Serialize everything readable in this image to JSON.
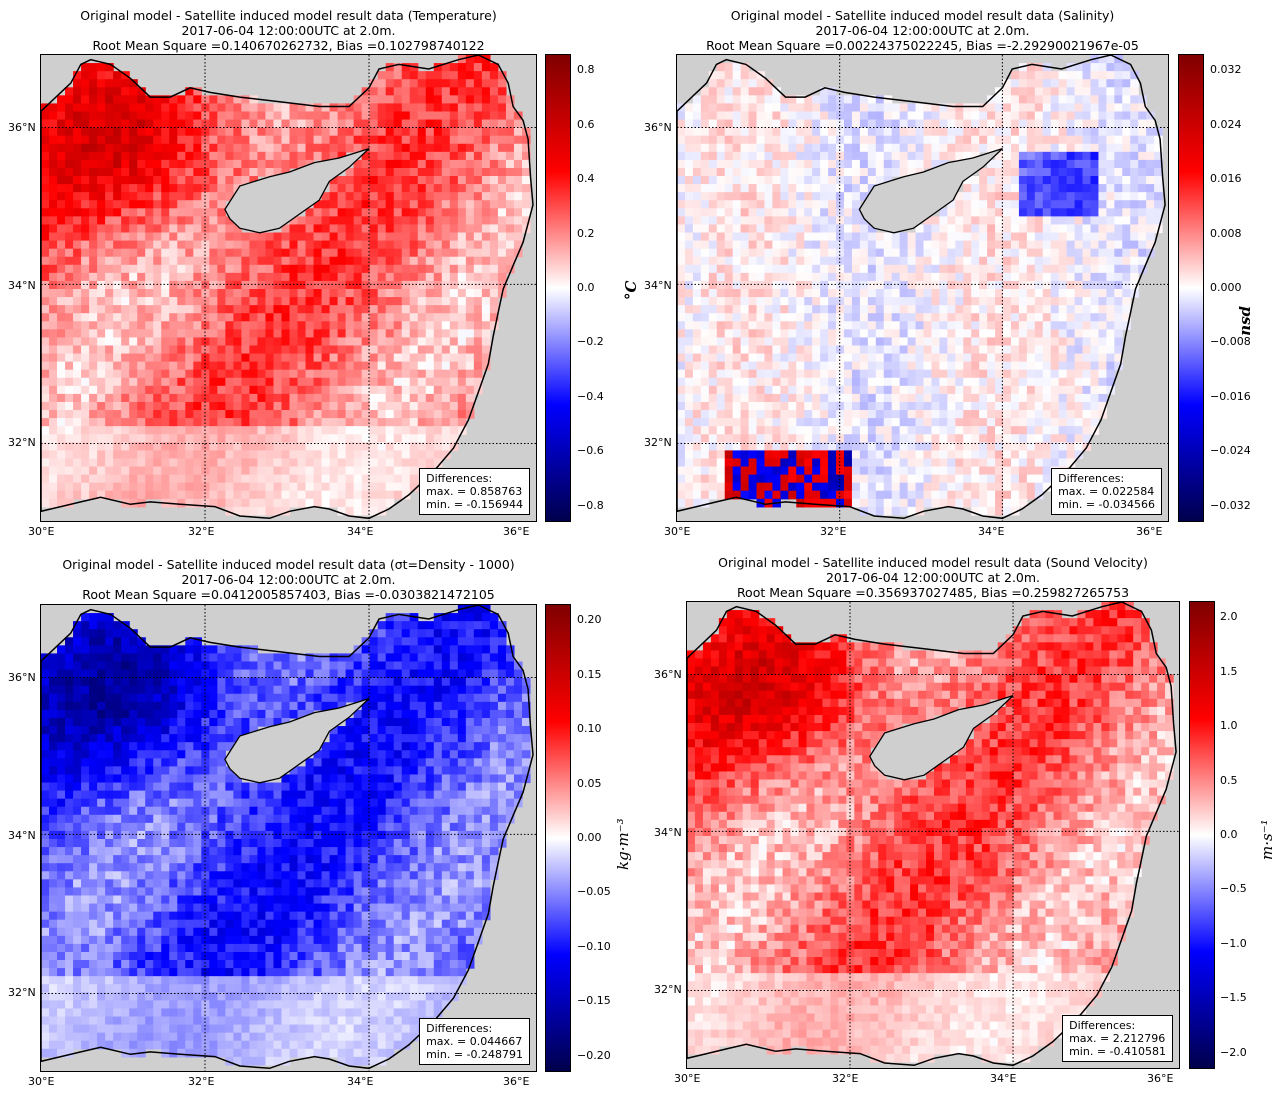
{
  "colors": {
    "land": "#cfcfcf",
    "cmap": [
      "#00004c",
      "#0000ff",
      "#ffffff",
      "#ff0000",
      "#800000"
    ]
  },
  "chart_data": [
    {
      "type": "heatmap",
      "title": [
        "Original model - Satellite induced model result data (Temperature)",
        "2017-06-04 12:00:00UTC at 2.0m.",
        "Root Mean Square =0.140670262732, Bias =0.102798740122"
      ],
      "variable": "Temperature",
      "colorbar_label": "°C",
      "xticks": [
        "30°E",
        "32°E",
        "34°E",
        "36°E"
      ],
      "yticks": [
        "36°N",
        "34°N",
        "32°N"
      ],
      "colorbar_ticks": [
        "0.8",
        "0.6",
        "0.4",
        "0.2",
        "0.0",
        "−0.2",
        "−0.4",
        "−0.6",
        "−0.8"
      ],
      "clim": [
        -0.86,
        0.86
      ],
      "rms": 0.140670262732,
      "bias": 0.102798740122,
      "differences": {
        "header": "Differences:",
        "max_label": "max. = 0.858763",
        "min_label": "min. = -0.156944",
        "max": 0.858763,
        "min": -0.156944
      },
      "pattern": "warm"
    },
    {
      "type": "heatmap",
      "title": [
        "Original model - Satellite induced model result data (Salinity)",
        "2017-06-04 12:00:00UTC at 2.0m.",
        "Root Mean Square =0.00224375022245, Bias =-2.29290021967e-05"
      ],
      "variable": "Salinity",
      "colorbar_label": "psu",
      "xticks": [
        "30°E",
        "32°E",
        "34°E",
        "36°E"
      ],
      "yticks": [
        "36°N",
        "34°N",
        "32°N"
      ],
      "colorbar_ticks": [
        "0.032",
        "0.024",
        "0.016",
        "0.008",
        "0.000",
        "−0.008",
        "−0.016",
        "−0.024",
        "−0.032"
      ],
      "clim": [
        -0.0345,
        0.0345
      ],
      "rms": 0.00224375022245,
      "bias": -2.29290021967e-05,
      "differences": {
        "header": "Differences:",
        "max_label": "max. = 0.022584",
        "min_label": "min. = -0.034566",
        "max": 0.022584,
        "min": -0.034566
      },
      "pattern": "neutral"
    },
    {
      "type": "heatmap",
      "title": [
        "Original model - Satellite induced model result data (σt=Density - 1000)",
        "2017-06-04 12:00:00UTC at 2.0m.",
        "Root Mean Square =0.0412005857403, Bias =-0.0303821472105"
      ],
      "variable": "Density",
      "colorbar_label": "kg·m⁻³",
      "xticks": [
        "30°E",
        "32°E",
        "34°E",
        "36°E"
      ],
      "yticks": [
        "36°N",
        "34°N",
        "32°N"
      ],
      "colorbar_ticks": [
        "0.20",
        "0.15",
        "0.10",
        "0.05",
        "0.00",
        "−0.05",
        "−0.10",
        "−0.15",
        "−0.20"
      ],
      "clim": [
        -0.25,
        0.25
      ],
      "rms": 0.0412005857403,
      "bias": -0.0303821472105,
      "differences": {
        "header": "Differences:",
        "max_label": "max. = 0.044667",
        "min_label": "min. = -0.248791",
        "max": 0.044667,
        "min": -0.248791
      },
      "pattern": "cold"
    },
    {
      "type": "heatmap",
      "title": [
        "Original model - Satellite induced model result data (Sound Velocity)",
        "2017-06-04 12:00:00UTC at 2.0m.",
        "Root Mean Square =0.356937027485, Bias =0.259827265753"
      ],
      "variable": "Sound Velocity",
      "colorbar_label": "m·s⁻¹",
      "xticks": [
        "30°E",
        "32°E",
        "34°E",
        "36°E"
      ],
      "yticks": [
        "36°N",
        "34°N",
        "32°N"
      ],
      "colorbar_ticks": [
        "2.0",
        "1.5",
        "1.0",
        "0.5",
        "0.0",
        "−0.5",
        "−1.0",
        "−1.5",
        "−2.0"
      ],
      "clim": [
        -2.2,
        2.2
      ],
      "rms": 0.356937027485,
      "bias": 0.259827265753,
      "differences": {
        "header": "Differences:",
        "max_label": "max. = 2.212796",
        "min_label": "min. = -0.410581",
        "max": 2.212796,
        "min": -0.410581
      },
      "pattern": "warm"
    }
  ]
}
